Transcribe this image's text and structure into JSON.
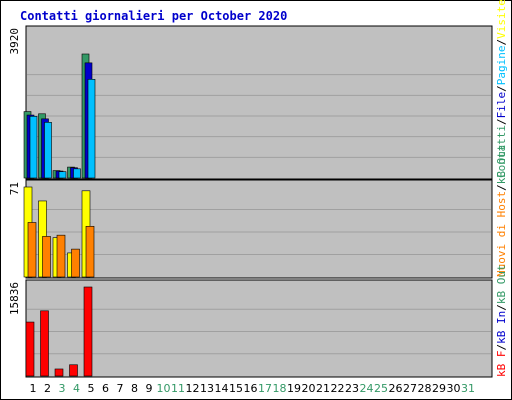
{
  "chart_data": [
    {
      "type": "bar",
      "panel": "pages",
      "title": "Contatti giornalieri per October 2020",
      "categories": [
        "1",
        "2",
        "3",
        "4",
        "5",
        "6",
        "7",
        "8",
        "9",
        "10",
        "11",
        "12",
        "13",
        "14",
        "15",
        "16",
        "17",
        "18",
        "19",
        "20",
        "21",
        "22",
        "23",
        "24",
        "25",
        "26",
        "27",
        "28",
        "29",
        "30",
        "31"
      ],
      "weekend_days": [
        "3",
        "4",
        "10",
        "11",
        "17",
        "18",
        "24",
        "25",
        "31"
      ],
      "ymax_label": "3920",
      "ylim": [
        0,
        3920
      ],
      "series": [
        {
          "name": "Contatti",
          "color": "#339966",
          "values": [
            2100,
            2030,
            235,
            345,
            3920,
            0,
            0,
            0,
            0,
            0,
            0,
            0,
            0,
            0,
            0,
            0,
            0,
            0,
            0,
            0,
            0,
            0,
            0,
            0,
            0,
            0,
            0,
            0,
            0,
            0,
            0
          ]
        },
        {
          "name": "File",
          "color": "#0000cc",
          "values": [
            1990,
            1870,
            220,
            325,
            3640,
            0,
            0,
            0,
            0,
            0,
            0,
            0,
            0,
            0,
            0,
            0,
            0,
            0,
            0,
            0,
            0,
            0,
            0,
            0,
            0,
            0,
            0,
            0,
            0,
            0,
            0
          ]
        },
        {
          "name": "Pagine",
          "color": "#00c0ff",
          "values": [
            1950,
            1760,
            200,
            290,
            3120,
            0,
            0,
            0,
            0,
            0,
            0,
            0,
            0,
            0,
            0,
            0,
            0,
            0,
            0,
            0,
            0,
            0,
            0,
            0,
            0,
            0,
            0,
            0,
            0,
            0,
            0
          ]
        }
      ]
    },
    {
      "type": "bar",
      "panel": "visits",
      "ymax_label": "71",
      "ylim": [
        0,
        71
      ],
      "series": [
        {
          "name": "Visite",
          "color": "#ffff00",
          "values": [
            71,
            60,
            31,
            19,
            68,
            0,
            0,
            0,
            0,
            0,
            0,
            0,
            0,
            0,
            0,
            0,
            0,
            0,
            0,
            0,
            0,
            0,
            0,
            0,
            0,
            0,
            0,
            0,
            0,
            0,
            0
          ]
        },
        {
          "name": "Nuovi di Host",
          "color": "#ff8000",
          "values": [
            43,
            32,
            33,
            22,
            40,
            0,
            0,
            0,
            0,
            0,
            0,
            0,
            0,
            0,
            0,
            0,
            0,
            0,
            0,
            0,
            0,
            0,
            0,
            0,
            0,
            0,
            0,
            0,
            0,
            0,
            0
          ]
        }
      ]
    },
    {
      "type": "bar",
      "panel": "kbytes",
      "ymax_label": "15836",
      "ylim": [
        0,
        15836
      ],
      "series": [
        {
          "name": "kB F",
          "color": "#ff0000",
          "values": [
            9600,
            11600,
            1250,
            2000,
            15836,
            0,
            0,
            0,
            0,
            0,
            0,
            0,
            0,
            0,
            0,
            0,
            0,
            0,
            0,
            0,
            0,
            0,
            0,
            0,
            0,
            0,
            0,
            0,
            0,
            0,
            0
          ]
        }
      ]
    }
  ],
  "right_legend": {
    "panel1": [
      {
        "text": "Contatti",
        "color": "#339966"
      },
      {
        "text": "/",
        "color": "#000000"
      },
      {
        "text": "File",
        "color": "#0000cc"
      },
      {
        "text": "/",
        "color": "#000000"
      },
      {
        "text": "Pagine",
        "color": "#00c0ff"
      },
      {
        "text": "/",
        "color": "#000000"
      },
      {
        "text": "Visite",
        "color": "#ffff00"
      }
    ],
    "panel2": [
      {
        "text": "Nuovi di Host",
        "color": "#ff8000"
      },
      {
        "text": "/",
        "color": "#000000"
      },
      {
        "text": "kB Out",
        "color": "#339966"
      }
    ],
    "panel3": [
      {
        "text": "kB F",
        "color": "#ff0000"
      },
      {
        "text": "/",
        "color": "#000000"
      },
      {
        "text": "kB In",
        "color": "#0000cc"
      },
      {
        "text": "/",
        "color": "#000000"
      },
      {
        "text": "kB Out",
        "color": "#339966"
      }
    ]
  },
  "colors": {
    "title": "#0000cc",
    "plot_bg": "#c0c0c0",
    "gridline": "#a0a0a0",
    "weekday_label": "#000000",
    "weekend_label": "#339966"
  }
}
